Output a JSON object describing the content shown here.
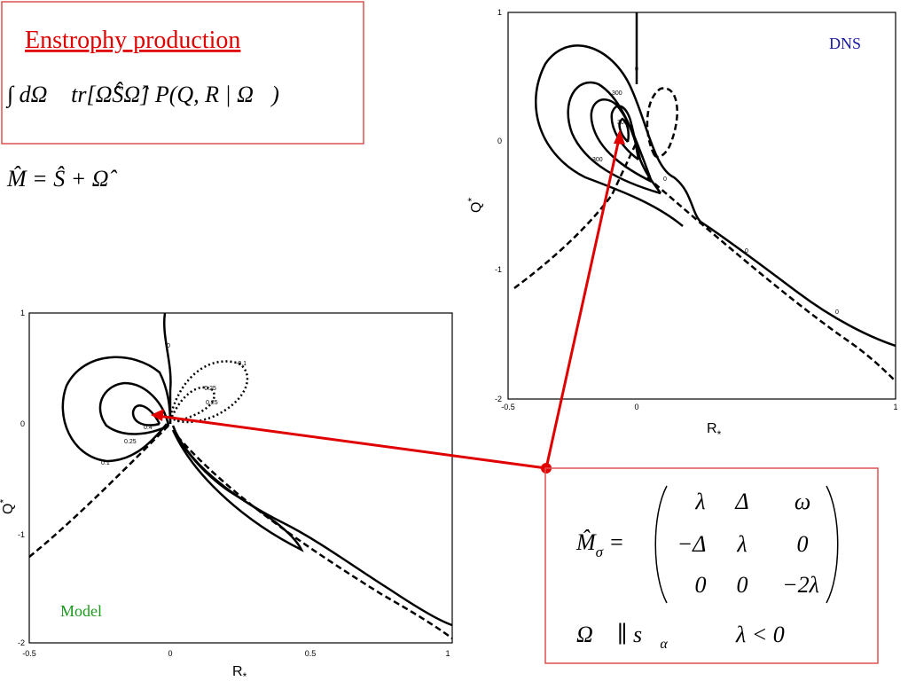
{
  "summary_box": {
    "title": "Enstrophy production",
    "formula": "∫ dΩ⃗ tr[Ω̂ŜΩ̂] P(Q, R | Ω⃗)"
  },
  "decomposition": "M̂ = Ŝ + Ω̂",
  "dns_plot": {
    "label": "DNS",
    "x_axis_label": "R",
    "y_axis_label": "Q",
    "axis_subscript": "*",
    "xticks": [
      "-0.5",
      "0",
      "1"
    ],
    "yticks": [
      "1",
      "0",
      "-1",
      "-2"
    ],
    "contour_labels": [
      "0",
      "300",
      "300",
      "300",
      "0",
      "0",
      "0"
    ]
  },
  "model_plot": {
    "label": "Model",
    "x_axis_label": "R",
    "y_axis_label": "Q",
    "axis_subscript": "*",
    "xticks": [
      "-0.5",
      "0",
      "0.5",
      "1"
    ],
    "yticks": [
      "1",
      "0",
      "-1",
      "-2"
    ],
    "contour_labels": [
      "0",
      "-0.1",
      "-0.25",
      "0.25",
      "0.4",
      "0.25",
      "0.1"
    ]
  },
  "matrix_box": {
    "lhs": "M̂",
    "lhs_subscript": "σ",
    "equals": "=",
    "matrix": [
      [
        "λ",
        "Δ",
        "ω"
      ],
      [
        "−Δ",
        "λ",
        "0"
      ],
      [
        "0",
        "0",
        "−2λ"
      ]
    ],
    "alignment": "Ω⃗ ∥ s⃗",
    "alignment_subscript": "α",
    "condition": "λ < 0"
  }
}
